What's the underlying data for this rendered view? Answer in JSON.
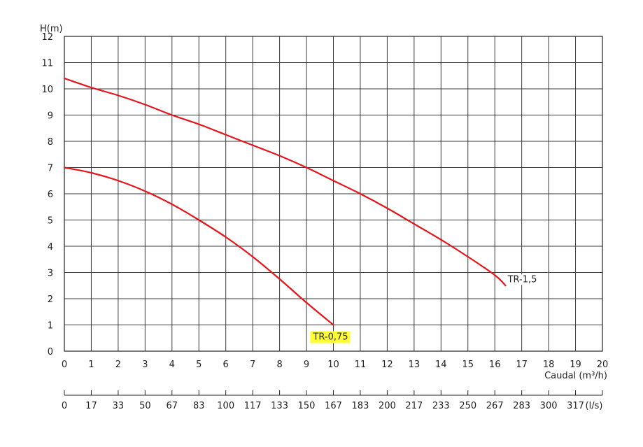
{
  "chart_data": {
    "type": "line",
    "ylabel": "H(m)",
    "xlabel": "Caudal (m³/h)",
    "x_ticks": [
      "0",
      "1",
      "2",
      "3",
      "4",
      "5",
      "6",
      "7",
      "8",
      "9",
      "10",
      "11",
      "12",
      "13",
      "14",
      "15",
      "16",
      "17",
      "18",
      "19",
      "20"
    ],
    "y_ticks": [
      "0",
      "1",
      "2",
      "3",
      "4",
      "5",
      "6",
      "7",
      "8",
      "9",
      "10",
      "11",
      "12"
    ],
    "secondary_x_ticks": [
      "0",
      "17",
      "33",
      "50",
      "67",
      "83",
      "100",
      "117",
      "133",
      "150",
      "167",
      "183",
      "200",
      "217",
      "233",
      "250",
      "267",
      "283",
      "300",
      "317"
    ],
    "secondary_x_unit": "(l/s)",
    "xlim": [
      0,
      20
    ],
    "ylim": [
      0,
      12
    ],
    "grid": true,
    "series": [
      {
        "name": "TR-1,5",
        "color": "#e8141b",
        "x": [
          0,
          1,
          2,
          3,
          4,
          5,
          6,
          7,
          8,
          9,
          10,
          11,
          12,
          13,
          14,
          15,
          16,
          16.4
        ],
        "y": [
          10.4,
          10.05,
          9.75,
          9.4,
          9.0,
          8.65,
          8.25,
          7.85,
          7.45,
          7.0,
          6.5,
          6.0,
          5.45,
          4.85,
          4.25,
          3.6,
          2.9,
          2.5
        ]
      },
      {
        "name": "TR-0,75",
        "color": "#e8141b",
        "highlight": "#ffff33",
        "x": [
          0,
          1,
          2,
          3,
          4,
          5,
          6,
          7,
          8,
          9,
          10
        ],
        "y": [
          7.0,
          6.8,
          6.5,
          6.1,
          5.6,
          5.0,
          4.35,
          3.6,
          2.75,
          1.85,
          1.0
        ]
      }
    ]
  }
}
